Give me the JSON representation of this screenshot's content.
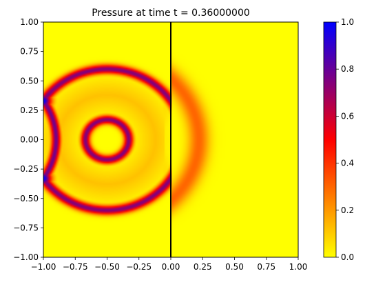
{
  "chart_data": {
    "type": "heatmap",
    "title": "Pressure at time t =     0.36000000",
    "xlim": [
      -1.0,
      1.0
    ],
    "ylim": [
      -1.0,
      1.0
    ],
    "x_ticks": [
      -1.0,
      -0.75,
      -0.5,
      -0.25,
      0.0,
      0.25,
      0.5,
      0.75,
      1.0
    ],
    "x_tick_labels": [
      "−1.00",
      "−0.75",
      "−0.50",
      "−0.25",
      "0.00",
      "0.25",
      "0.50",
      "0.75",
      "1.00"
    ],
    "y_ticks": [
      1.0,
      0.75,
      0.5,
      0.25,
      0.0,
      -0.25,
      -0.5,
      -0.75,
      -1.0
    ],
    "y_tick_labels": [
      "1.00",
      "0.75",
      "0.50",
      "0.25",
      "0.00",
      "−0.25",
      "−0.50",
      "−0.75",
      "−1.00"
    ],
    "colorbar": {
      "range": [
        0.0,
        1.0
      ],
      "ticks": [
        1.0,
        0.8,
        0.6,
        0.4,
        0.2,
        0.0
      ],
      "tick_labels": [
        "1.0",
        "0.8",
        "0.6",
        "0.4",
        "0.2",
        "0.0"
      ],
      "colormap": [
        {
          "value": 0.0,
          "color": "#ffff00"
        },
        {
          "value": 0.25,
          "color": "#ff7f00"
        },
        {
          "value": 0.5,
          "color": "#ff0000"
        },
        {
          "value": 0.75,
          "color": "#80007f"
        },
        {
          "value": 1.0,
          "color": "#0000ff"
        }
      ]
    },
    "interface_line": {
      "x": 0.0,
      "color": "#000000"
    },
    "features": [
      {
        "kind": "ring",
        "center": [
          -0.5,
          0.0
        ],
        "radius": 0.6,
        "peak": 0.75
      },
      {
        "kind": "ring",
        "center": [
          -0.5,
          0.0
        ],
        "radius": 0.17,
        "peak": 0.75
      },
      {
        "kind": "transmitted-ring",
        "center": [
          -0.5,
          0.0
        ],
        "radius": 0.72,
        "peak": 0.3
      },
      {
        "kind": "reflection-spot",
        "center": [
          -1.0,
          0.33
        ],
        "peak": 1.0
      },
      {
        "kind": "reflection-spot",
        "center": [
          -1.0,
          -0.33
        ],
        "peak": 1.0
      }
    ],
    "grid": false
  }
}
